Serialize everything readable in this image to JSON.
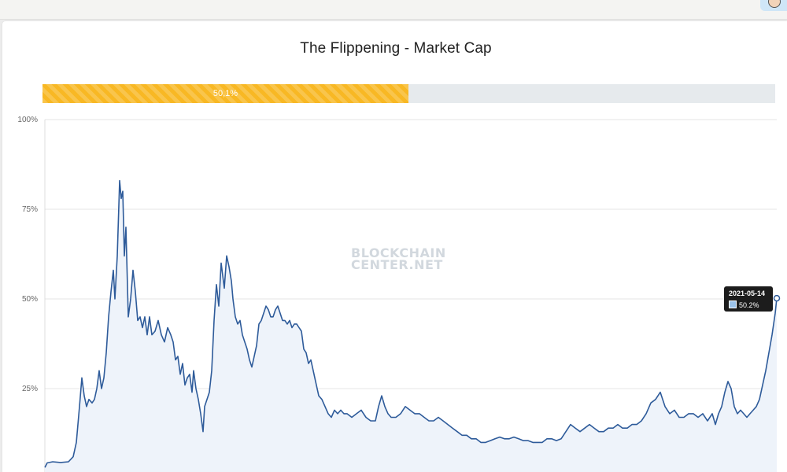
{
  "title": "The Flippening - Market Cap",
  "progress": {
    "label": "50,1%",
    "fraction": 0.501,
    "color": "#f8b824",
    "track_color": "#e6eaed"
  },
  "watermark": {
    "line1": "BLOCKCHAIN",
    "line2": "CENTER.NET"
  },
  "tooltip": {
    "date": "2021-05-14",
    "value": "50.2%"
  },
  "colors": {
    "line": "#2e5b9a",
    "fill": "#eef3fa",
    "grid": "#e6e6e6"
  },
  "chart_data": {
    "type": "area",
    "title": "The Flippening - Market Cap",
    "xlabel": "",
    "ylabel": "",
    "ylim": [
      0,
      100
    ],
    "ytick_labels": [
      "100%",
      "75%",
      "50%",
      "25%"
    ],
    "yticks": [
      100,
      75,
      50,
      25
    ],
    "x_date_range": [
      "2016-03",
      "2021-05-14"
    ],
    "x_index_max": 930,
    "points": [
      [
        0,
        3
      ],
      [
        3,
        4.3
      ],
      [
        10,
        4.6
      ],
      [
        20,
        4.4
      ],
      [
        30,
        4.6
      ],
      [
        36,
        6
      ],
      [
        40,
        10
      ],
      [
        44,
        20
      ],
      [
        47,
        28
      ],
      [
        50,
        23
      ],
      [
        53,
        20
      ],
      [
        56,
        22
      ],
      [
        60,
        21
      ],
      [
        63,
        22
      ],
      [
        66,
        25
      ],
      [
        69,
        30
      ],
      [
        72,
        25
      ],
      [
        75,
        28
      ],
      [
        78,
        35
      ],
      [
        81,
        45
      ],
      [
        84,
        52
      ],
      [
        87,
        58
      ],
      [
        89,
        50
      ],
      [
        92,
        62
      ],
      [
        95,
        83
      ],
      [
        97,
        78
      ],
      [
        99,
        80
      ],
      [
        101,
        62
      ],
      [
        103,
        70
      ],
      [
        106,
        45
      ],
      [
        109,
        50
      ],
      [
        112,
        58
      ],
      [
        115,
        52
      ],
      [
        118,
        44
      ],
      [
        121,
        45
      ],
      [
        124,
        42
      ],
      [
        127,
        45
      ],
      [
        130,
        40
      ],
      [
        133,
        45
      ],
      [
        136,
        40
      ],
      [
        140,
        41
      ],
      [
        144,
        44
      ],
      [
        148,
        40
      ],
      [
        152,
        38
      ],
      [
        156,
        42
      ],
      [
        160,
        40
      ],
      [
        163,
        38
      ],
      [
        166,
        33
      ],
      [
        169,
        34
      ],
      [
        172,
        29
      ],
      [
        175,
        32
      ],
      [
        178,
        26
      ],
      [
        181,
        28
      ],
      [
        184,
        29
      ],
      [
        187,
        24
      ],
      [
        189,
        30
      ],
      [
        192,
        25
      ],
      [
        195,
        22
      ],
      [
        198,
        18
      ],
      [
        201,
        13
      ],
      [
        203,
        20
      ],
      [
        206,
        22
      ],
      [
        209,
        24
      ],
      [
        212,
        30
      ],
      [
        215,
        44
      ],
      [
        218,
        54
      ],
      [
        221,
        48
      ],
      [
        224,
        60
      ],
      [
        228,
        53
      ],
      [
        231,
        62
      ],
      [
        234,
        59
      ],
      [
        237,
        55
      ],
      [
        239,
        50
      ],
      [
        242,
        45
      ],
      [
        245,
        43
      ],
      [
        248,
        44
      ],
      [
        251,
        40
      ],
      [
        254,
        38
      ],
      [
        257,
        36
      ],
      [
        260,
        33
      ],
      [
        263,
        31
      ],
      [
        266,
        34
      ],
      [
        269,
        37
      ],
      [
        272,
        43
      ],
      [
        275,
        44
      ],
      [
        278,
        46
      ],
      [
        281,
        48
      ],
      [
        284,
        47
      ],
      [
        287,
        45
      ],
      [
        290,
        45
      ],
      [
        293,
        47
      ],
      [
        296,
        48
      ],
      [
        299,
        46
      ],
      [
        302,
        44
      ],
      [
        305,
        44
      ],
      [
        308,
        43
      ],
      [
        311,
        44
      ],
      [
        314,
        42
      ],
      [
        317,
        43
      ],
      [
        320,
        43
      ],
      [
        323,
        42
      ],
      [
        326,
        41
      ],
      [
        329,
        36
      ],
      [
        332,
        35
      ],
      [
        335,
        32
      ],
      [
        338,
        33
      ],
      [
        341,
        30
      ],
      [
        344,
        27
      ],
      [
        348,
        23
      ],
      [
        352,
        22
      ],
      [
        356,
        20
      ],
      [
        360,
        18
      ],
      [
        364,
        17
      ],
      [
        368,
        19
      ],
      [
        372,
        18
      ],
      [
        376,
        19
      ],
      [
        380,
        18
      ],
      [
        384,
        18
      ],
      [
        390,
        17
      ],
      [
        396,
        18
      ],
      [
        402,
        19
      ],
      [
        408,
        17
      ],
      [
        414,
        16
      ],
      [
        420,
        16
      ],
      [
        424,
        20
      ],
      [
        428,
        23
      ],
      [
        432,
        20
      ],
      [
        436,
        18
      ],
      [
        440,
        17
      ],
      [
        446,
        17
      ],
      [
        452,
        18
      ],
      [
        458,
        20
      ],
      [
        464,
        19
      ],
      [
        470,
        18
      ],
      [
        476,
        18
      ],
      [
        482,
        17
      ],
      [
        488,
        16
      ],
      [
        494,
        16
      ],
      [
        500,
        17
      ],
      [
        506,
        16
      ],
      [
        512,
        15
      ],
      [
        518,
        14
      ],
      [
        524,
        13
      ],
      [
        530,
        12
      ],
      [
        536,
        12
      ],
      [
        542,
        11
      ],
      [
        548,
        11
      ],
      [
        554,
        10
      ],
      [
        560,
        10
      ],
      [
        566,
        10.5
      ],
      [
        572,
        11
      ],
      [
        578,
        11.5
      ],
      [
        584,
        11
      ],
      [
        590,
        11
      ],
      [
        596,
        11.5
      ],
      [
        602,
        11
      ],
      [
        608,
        10.5
      ],
      [
        614,
        10.5
      ],
      [
        620,
        10
      ],
      [
        626,
        10
      ],
      [
        632,
        10
      ],
      [
        638,
        11
      ],
      [
        644,
        11
      ],
      [
        650,
        10.5
      ],
      [
        656,
        11
      ],
      [
        662,
        13
      ],
      [
        668,
        15
      ],
      [
        674,
        14
      ],
      [
        680,
        13
      ],
      [
        686,
        14
      ],
      [
        692,
        15
      ],
      [
        698,
        14
      ],
      [
        704,
        13
      ],
      [
        710,
        13
      ],
      [
        716,
        14
      ],
      [
        722,
        14
      ],
      [
        728,
        15
      ],
      [
        734,
        14
      ],
      [
        740,
        14
      ],
      [
        746,
        15
      ],
      [
        752,
        15
      ],
      [
        758,
        16
      ],
      [
        764,
        18
      ],
      [
        770,
        21
      ],
      [
        776,
        22
      ],
      [
        782,
        24
      ],
      [
        788,
        20
      ],
      [
        794,
        18
      ],
      [
        800,
        19
      ],
      [
        806,
        17
      ],
      [
        812,
        17
      ],
      [
        818,
        18
      ],
      [
        824,
        18
      ],
      [
        830,
        17
      ],
      [
        836,
        18
      ],
      [
        842,
        16
      ],
      [
        848,
        18
      ],
      [
        852,
        15
      ],
      [
        856,
        18
      ],
      [
        860,
        20
      ],
      [
        864,
        24
      ],
      [
        868,
        27
      ],
      [
        872,
        25
      ],
      [
        876,
        20
      ],
      [
        880,
        18
      ],
      [
        884,
        19
      ],
      [
        888,
        18
      ],
      [
        892,
        17
      ],
      [
        896,
        18
      ],
      [
        900,
        19
      ],
      [
        904,
        20
      ],
      [
        908,
        22
      ],
      [
        912,
        26
      ],
      [
        916,
        30
      ],
      [
        920,
        35
      ],
      [
        924,
        40
      ],
      [
        928,
        46
      ],
      [
        930,
        50.2
      ]
    ]
  }
}
